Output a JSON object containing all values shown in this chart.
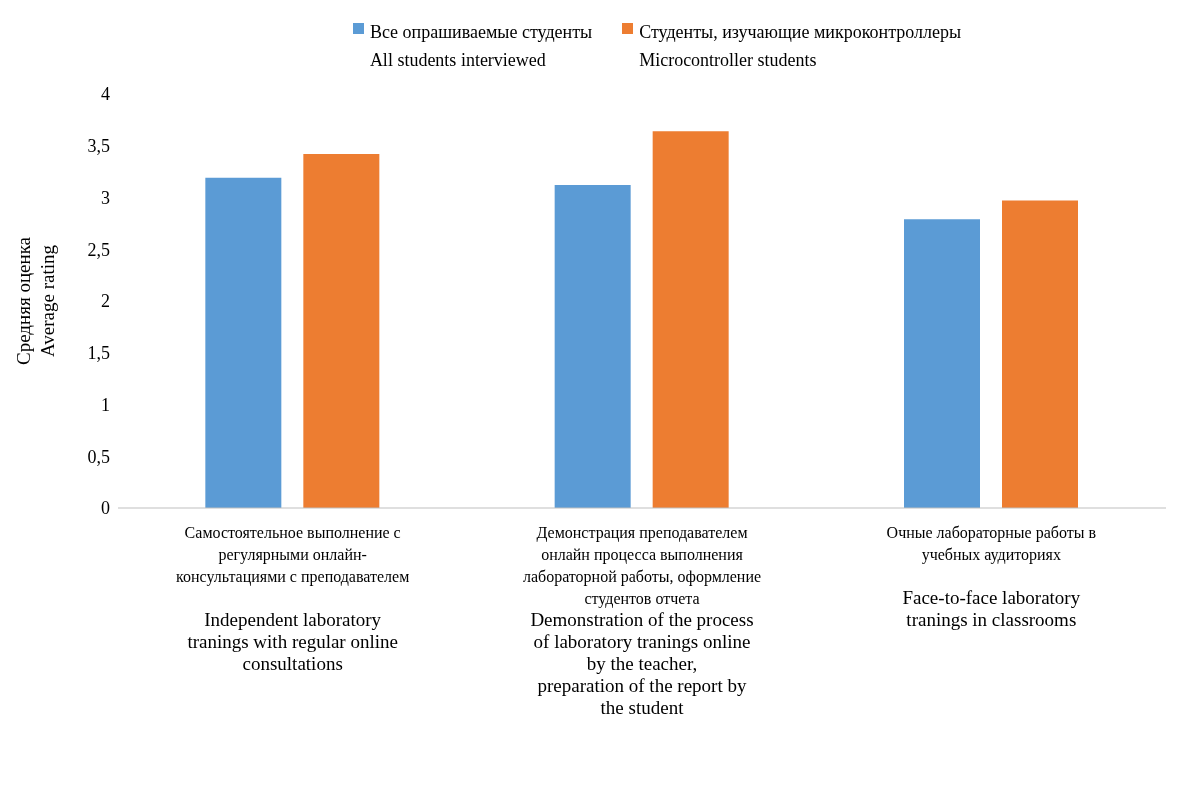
{
  "chart_data": {
    "type": "bar",
    "ylabel": "Средняя оценка\nAverage rating",
    "categories": [
      "Самостоятельное выполнение с\nрегулярными онлайн-\nконсультациями с преподавателем\n\nIndependent laboratory\ntranings with regular online\nconsultations",
      "Демонстрация преподавателем\nонлайн процесса выполнения\nлабораторной работы, оформление\nстудентов отчета\nDemonstration of the process\nof laboratory tranings online\nby the teacher,\npreparation of the report by\nthe student",
      "Очные лабораторные работы в\nучебных аудиториях\n\nFace-to-face laboratory\ntranings in classrooms"
    ],
    "series": [
      {
        "name": "Все опрашиваемые студенты\nAll students interviewed",
        "color": "#5b9bd5",
        "values": [
          3.19,
          3.12,
          2.79
        ]
      },
      {
        "name": "Студенты, изучающие микроконтроллеры\nMicrocontroller students",
        "color": "#ed7d31",
        "values": [
          3.42,
          3.64,
          2.97
        ]
      }
    ],
    "ylim": [
      0,
      4
    ],
    "yticks": [
      0,
      {
        "value": 0.5,
        "label": "0,5"
      },
      1,
      {
        "value": 1.5,
        "label": "1,5"
      },
      2,
      {
        "value": 2.5,
        "label": "2,5"
      },
      3,
      {
        "value": 3.5,
        "label": "3,5"
      },
      4
    ],
    "grid": false,
    "legend": "top"
  }
}
